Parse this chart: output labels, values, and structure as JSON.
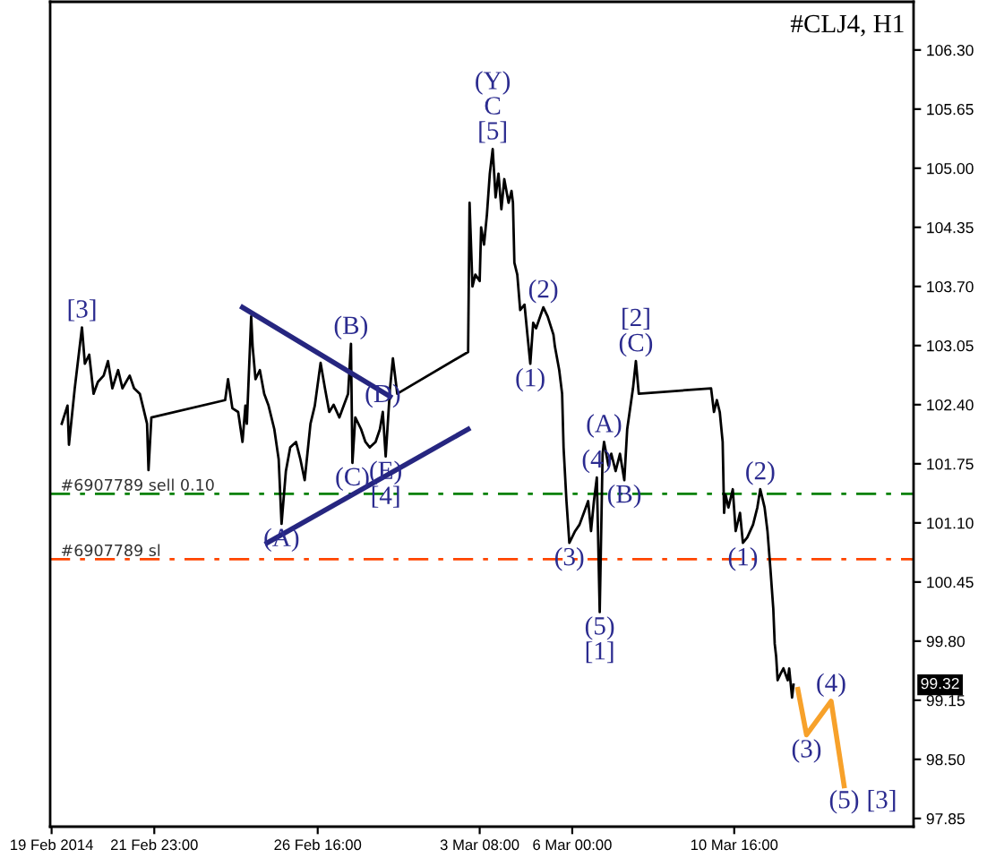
{
  "chart_data": {
    "type": "line",
    "title": "#CLJ4, H1",
    "xlim": [
      "2014-02-18T23:00",
      "2014-03-15T20:00"
    ],
    "xticks": [
      {
        "value": "2014-02-19",
        "label": "19 Feb 2014"
      },
      {
        "value": "2014-02-21T23:00",
        "label": "21 Feb 23:00"
      },
      {
        "value": "2014-02-26T16:00",
        "label": "26 Feb 16:00"
      },
      {
        "value": "2014-03-03T08:00",
        "label": "3 Mar 08:00"
      },
      {
        "value": "2014-03-06T00:00",
        "label": "6 Mar 00:00"
      },
      {
        "value": "2014-03-10T16:00",
        "label": "10 Mar 16:00"
      }
    ],
    "ylim": [
      97.76,
      106.83
    ],
    "yticks": [
      {
        "value": 106.3,
        "label": "106.30"
      },
      105.65,
      {
        "value": 105.0,
        "label": "105.00"
      },
      104.35,
      {
        "value": 103.7,
        "label": "103.70"
      },
      103.05,
      {
        "value": 102.4,
        "label": "102.40"
      },
      101.75,
      {
        "value": 101.1,
        "label": "101.10"
      },
      100.45,
      {
        "value": 99.8,
        "label": "99.80"
      },
      99.15,
      {
        "value": 98.5,
        "label": "98.50"
      },
      97.85
    ],
    "series": [
      {
        "color": "#000000",
        "x": [
          "2014-02-19T07:00",
          "2014-02-19T11:00",
          "2014-02-19T12:00",
          "2014-02-19T16:00",
          "2014-02-19T21:00",
          "2014-02-19T23:00",
          "2014-02-20T02:00",
          "2014-02-20T05:00",
          "2014-02-20T08:00",
          "2014-02-20T12:00",
          "2014-02-20T15:00",
          "2014-02-20T18:00",
          "2014-02-20T22:00",
          "2014-02-21T01:00",
          "2014-02-21T06:00",
          "2014-02-21T09:00",
          "2014-02-21T13:00",
          "2014-02-21T15:00",
          "2014-02-21T18:00",
          "2014-02-21T19:00",
          "2014-02-21T21:00",
          "2014-02-24T00:00",
          "2014-02-24T02:00",
          "2014-02-24T05:00",
          "2014-02-24T09:00",
          "2014-02-24T12:00",
          "2014-02-24T14:00",
          "2014-02-24T15:00",
          "2014-02-24T18:00",
          "2014-02-24T19:00",
          "2014-02-24T21:00",
          "2014-02-25T00:00",
          "2014-02-25T03:00",
          "2014-02-25T06:00",
          "2014-02-25T10:00",
          "2014-02-25T13:00",
          "2014-02-25T15:00",
          "2014-02-25T18:00",
          "2014-02-25T21:00",
          "2014-02-26T01:00",
          "2014-02-26T04:00",
          "2014-02-26T07:00",
          "2014-02-26T11:00",
          "2014-02-26T14:00",
          "2014-02-26T18:00",
          "2014-02-26T21:00",
          "2014-02-27T00:00",
          "2014-02-27T03:00",
          "2014-02-27T07:00",
          "2014-02-27T10:00",
          "2014-02-27T13:00",
          "2014-02-27T15:00",
          "2014-02-27T16:00",
          "2014-02-27T18:00",
          "2014-02-27T22:00",
          "2014-02-28T01:00",
          "2014-02-28T04:00",
          "2014-02-28T08:00",
          "2014-02-28T11:00",
          "2014-02-28T13:00",
          "2014-02-28T15:00",
          "2014-02-28T18:00",
          "2014-02-28T20:00",
          "2014-02-28T23:00",
          "2014-03-03T00:00",
          "2014-03-03T01:00",
          "2014-03-03T03:00",
          "2014-03-03T05:00",
          "2014-03-03T08:00",
          "2014-03-03T09:00",
          "2014-03-03T11:00",
          "2014-03-03T13:00",
          "2014-03-03T15:00",
          "2014-03-03T17:00",
          "2014-03-03T19:00",
          "2014-03-03T21:00",
          "2014-03-03T23:00",
          "2014-03-04T01:00",
          "2014-03-04T04:00",
          "2014-03-04T06:00",
          "2014-03-04T07:00",
          "2014-03-04T08:00",
          "2014-03-04T10:00",
          "2014-03-04T12:00",
          "2014-03-04T15:00",
          "2014-03-04T17:00",
          "2014-03-04T19:00",
          "2014-03-04T21:00",
          "2014-03-04T23:00",
          "2014-03-05T04:00",
          "2014-03-05T07:00",
          "2014-03-05T11:00",
          "2014-03-05T12:00",
          "2014-03-05T15:00",
          "2014-03-05T17:00",
          "2014-03-05T18:00",
          "2014-03-05T20:00",
          "2014-03-05T22:00",
          "2014-03-06T02:00",
          "2014-03-06T05:00",
          "2014-03-06T08:00",
          "2014-03-06T11:00",
          "2014-03-06T13:00",
          "2014-03-06T15:00",
          "2014-03-06T17:00",
          "2014-03-06T19:00",
          "2014-03-06T21:00",
          "2014-03-06T22:00",
          "2014-03-07T01:00",
          "2014-03-07T03:00",
          "2014-03-07T06:00",
          "2014-03-07T09:00",
          "2014-03-07T12:00",
          "2014-03-07T14:00",
          "2014-03-07T18:00",
          "2014-03-07T20:00",
          "2014-03-07T22:00",
          "2014-03-10T00:00",
          "2014-03-10T02:00",
          "2014-03-10T04:00",
          "2014-03-10T06:00",
          "2014-03-10T08:00",
          "2014-03-10T09:00",
          "2014-03-10T10:00",
          "2014-03-10T12:00",
          "2014-03-10T15:00",
          "2014-03-10T17:00",
          "2014-03-10T20:00",
          "2014-03-10T22:00",
          "2014-03-11T01:00",
          "2014-03-11T05:00",
          "2014-03-11T08:00",
          "2014-03-11T10:00",
          "2014-03-11T13:00",
          "2014-03-11T15:00",
          "2014-03-11T17:00",
          "2014-03-11T19:00",
          "2014-03-11T20:00",
          "2014-03-11T21:00",
          "2014-03-11T22:00",
          "2014-03-12T00:00",
          "2014-03-12T02:00",
          "2014-03-12T05:00",
          "2014-03-12T06:00",
          "2014-03-12T08:00",
          "2014-03-12T09:00"
        ],
        "values": [
          102.19,
          102.39,
          101.96,
          102.58,
          103.25,
          102.85,
          102.95,
          102.52,
          102.65,
          102.72,
          102.88,
          102.58,
          102.78,
          102.58,
          102.72,
          102.58,
          102.52,
          102.39,
          102.19,
          101.68,
          102.26,
          102.45,
          102.68,
          102.36,
          102.32,
          101.99,
          102.39,
          102.19,
          103.37,
          103.04,
          102.68,
          102.78,
          102.52,
          102.39,
          102.13,
          101.8,
          101.09,
          101.67,
          101.93,
          101.99,
          101.8,
          101.57,
          102.19,
          102.39,
          102.86,
          102.58,
          102.32,
          102.4,
          102.26,
          102.39,
          102.52,
          103.07,
          101.76,
          102.26,
          102.13,
          101.99,
          101.93,
          101.99,
          102.13,
          102.32,
          101.83,
          102.58,
          102.91,
          102.52,
          102.98,
          104.62,
          103.7,
          103.83,
          103.76,
          104.35,
          104.16,
          104.49,
          104.94,
          105.21,
          104.68,
          104.94,
          104.55,
          104.88,
          104.62,
          104.75,
          104.62,
          103.96,
          103.83,
          103.44,
          103.5,
          103.17,
          102.85,
          103.3,
          103.24,
          103.47,
          103.37,
          103.17,
          103.04,
          102.78,
          102.52,
          101.93,
          101.34,
          100.88,
          101.01,
          101.08,
          101.21,
          101.34,
          101.01,
          101.34,
          101.6,
          100.12,
          101.86,
          101.99,
          101.73,
          101.86,
          101.67,
          101.86,
          101.57,
          102.13,
          102.58,
          102.88,
          102.52,
          102.58,
          102.32,
          102.45,
          102.32,
          101.99,
          101.21,
          101.41,
          101.27,
          101.47,
          101.01,
          101.21,
          100.88,
          100.94,
          101.08,
          101.27,
          101.47,
          101.27,
          101.01,
          100.6,
          100.16,
          99.77,
          99.63,
          99.37,
          99.44,
          99.5,
          99.37,
          99.5,
          99.18,
          99.32
        ]
      },
      {
        "color": "#262680",
        "x": [
          "2014-02-24T12:00",
          "2014-02-28T18:00"
        ],
        "values": [
          103.47,
          102.49
        ]
      },
      {
        "color": "#262680",
        "x": [
          "2014-02-25T05:00",
          "2014-03-03T00:00"
        ],
        "values": [
          100.88,
          102.13
        ]
      },
      {
        "color": "#f7a12a",
        "x": [
          "2014-03-12T12:00",
          "2014-03-12T18:00",
          "2014-03-13T11:00",
          "2014-03-13T20:00"
        ],
        "values": [
          99.27,
          98.77,
          99.14,
          98.21
        ]
      }
    ],
    "ref_lines": [
      {
        "axis": "y",
        "value": 101.42,
        "label": "#6907789 sell 0.10",
        "color": "#008000",
        "line_style": "dashdot"
      },
      {
        "axis": "y",
        "value": 100.7,
        "label": "#6907789 sl",
        "color": "#ff4500",
        "line_style": "dashdot"
      }
    ],
    "annotations": [
      {
        "text": "[3]",
        "x": "2014-02-19T21:00",
        "y": 103.25
      },
      {
        "text": "(B)",
        "x": "2014-02-27T15:00",
        "y": 103.07
      },
      {
        "text": "(D)",
        "x": "2014-02-28T13:00",
        "y": 102.32
      },
      {
        "text": "(C)",
        "x": "2014-02-27T16:00",
        "y": 101.76
      },
      {
        "text": "(E)",
        "x": "2014-02-28T15:00",
        "y": 101.83
      },
      {
        "text": "[4]",
        "x": "2014-02-28T15:00",
        "y": 101.83
      },
      {
        "text": "(A)",
        "x": "2014-02-25T15:00",
        "y": 101.09
      },
      {
        "text": "(Y)",
        "x": "2014-03-03T17:00",
        "y": 105.21
      },
      {
        "text": "C",
        "x": "2014-03-03T17:00",
        "y": 105.21
      },
      {
        "text": "[5]",
        "x": "2014-03-03T17:00",
        "y": 105.21
      },
      {
        "text": "(2)",
        "x": "2014-03-05T04:00",
        "y": 103.47
      },
      {
        "text": "(1)",
        "x": "2014-03-04T19:00",
        "y": 102.85
      },
      {
        "text": "[2]",
        "x": "2014-03-07T20:00",
        "y": 102.88
      },
      {
        "text": "(C)",
        "x": "2014-03-07T20:00",
        "y": 102.88
      },
      {
        "text": "(A)",
        "x": "2014-03-06T22:00",
        "y": 101.99
      },
      {
        "text": "(4)",
        "x": "2014-03-06T17:00",
        "y": 101.6
      },
      {
        "text": "(B)",
        "x": "2014-03-07T12:00",
        "y": 101.57
      },
      {
        "text": "(3)",
        "x": "2014-03-05T22:00",
        "y": 100.88
      },
      {
        "text": "(5)",
        "x": "2014-03-06T19:00",
        "y": 100.12
      },
      {
        "text": "[1]",
        "x": "2014-03-06T19:00",
        "y": 100.12
      },
      {
        "text": "(2)",
        "x": "2014-03-11T10:00",
        "y": 101.47
      },
      {
        "text": "(1)",
        "x": "2014-03-10T22:00",
        "y": 100.88
      },
      {
        "text": "(4)",
        "x": "2014-03-13T11:00",
        "y": 99.14
      },
      {
        "text": "(3)",
        "x": "2014-03-12T18:00",
        "y": 98.77
      },
      {
        "text": "(5)",
        "x": "2014-03-13T20:00",
        "y": 98.21
      },
      {
        "text": "[3]",
        "x": "2014-03-13T20:00",
        "y": 98.21
      },
      {
        "text": "99.32",
        "y": 99.32
      }
    ]
  }
}
